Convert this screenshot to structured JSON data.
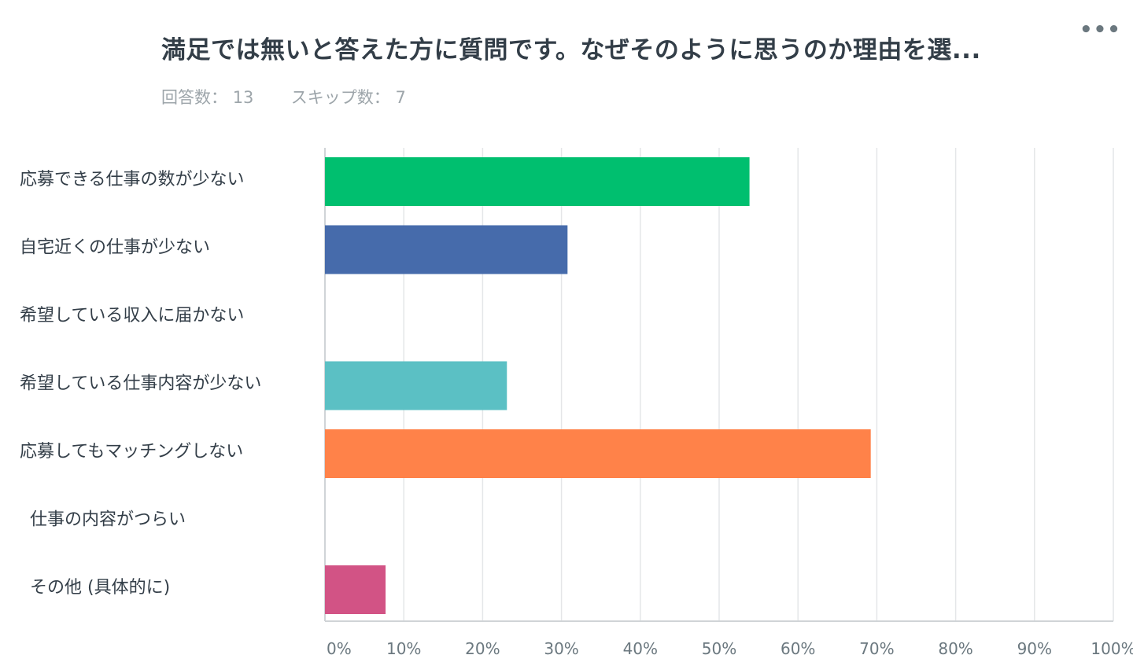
{
  "header": {
    "title": "満足では無いと答えた方に質問です。なぜそのように思うのか理由を選...",
    "more_icon": "more-horizontal-icon",
    "more_label": "•••",
    "answered_label": "回答数：",
    "answered_count": "13",
    "skipped_label": "スキップ数：",
    "skipped_count": "7"
  },
  "chart_data": {
    "type": "bar",
    "orientation": "horizontal",
    "categories": [
      "応募できる仕事の数が少ない",
      "自宅近くの仕事が少ない",
      "希望している収入に届かない",
      "希望している仕事内容が少ない",
      "応募してもマッチングしない",
      "仕事の内容がつらい",
      "その他 (具体的に)"
    ],
    "values": [
      53.85,
      30.77,
      0,
      23.08,
      69.23,
      0,
      7.69
    ],
    "colors": [
      "#00bf6f",
      "#466bab",
      "#8b5cf6",
      "#5bc0c4",
      "#ff8249",
      "#f7c52b",
      "#d25385"
    ],
    "xlim": [
      0,
      100
    ],
    "xticks": [
      "0%",
      "10%",
      "20%",
      "30%",
      "40%",
      "50%",
      "60%",
      "70%",
      "80%",
      "90%",
      "100%"
    ],
    "grid": true,
    "legend": "none"
  }
}
